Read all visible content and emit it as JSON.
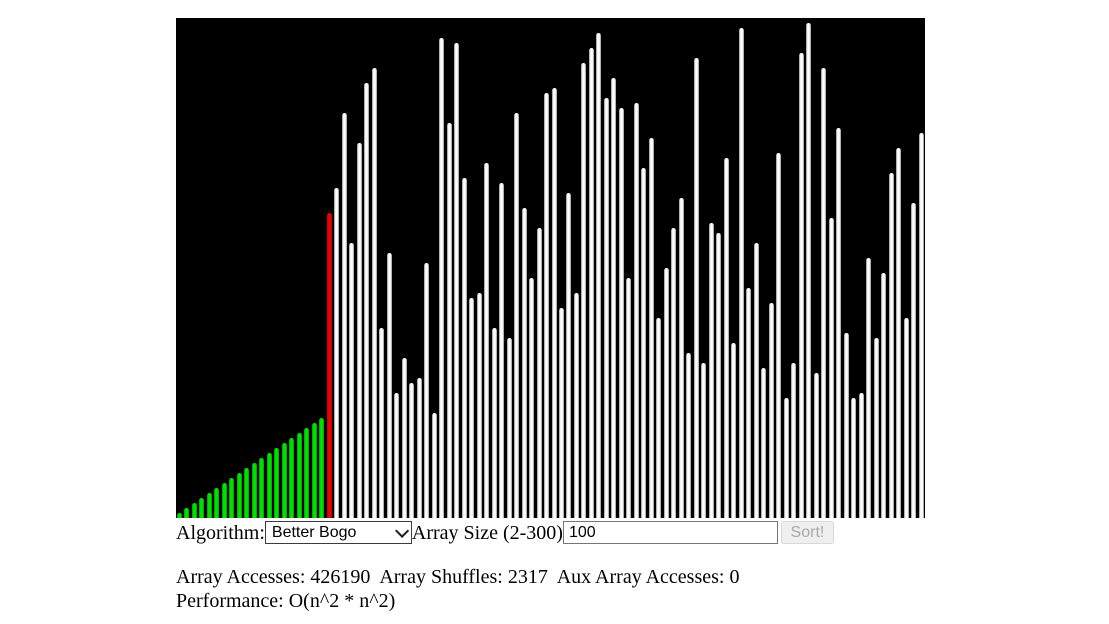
{
  "page": {
    "background": "#ffffff"
  },
  "chart_data": {
    "type": "bar",
    "title": "",
    "xlabel": "",
    "ylabel": "",
    "ylim": [
      0,
      100
    ],
    "grid": false,
    "canvas_background": "#000000",
    "bar_count": 100,
    "sorted_prefix_count": 20,
    "current_index": 20,
    "colors": {
      "sorted": "#00e400",
      "current": "#ee0000",
      "unsorted": "#ffffff"
    },
    "values": [
      1,
      2,
      3,
      4,
      5,
      6,
      7,
      8,
      9,
      10,
      11,
      12,
      13,
      14,
      15,
      16,
      17,
      18,
      19,
      20,
      61,
      66,
      81,
      55,
      75,
      87,
      90,
      38,
      53,
      25,
      32,
      27,
      28,
      51,
      21,
      96,
      79,
      95,
      68,
      44,
      45,
      71,
      38,
      67,
      36,
      81,
      62,
      48,
      58,
      85,
      86,
      42,
      65,
      45,
      91,
      94,
      97,
      84,
      88,
      82,
      48,
      83,
      70,
      76,
      40,
      50,
      58,
      64,
      33,
      92,
      31,
      59,
      57,
      72,
      35,
      98,
      46,
      55,
      30,
      43,
      73,
      24,
      31,
      93,
      99,
      29,
      90,
      60,
      78,
      37,
      24,
      25,
      52,
      36,
      49,
      69,
      74,
      40,
      63,
      77
    ]
  },
  "controls": {
    "algorithm_label": "Algorithm:",
    "algorithm_selected": "Better Bogo",
    "array_size_label": "Array Size (2-300)",
    "array_size_value": "100",
    "sort_button_label": "Sort!"
  },
  "stats": {
    "items": [
      {
        "label": "Array Accesses:",
        "value": "426190"
      },
      {
        "label": "Array Shuffles:",
        "value": "2317"
      },
      {
        "label": "Aux Array Accesses:",
        "value": "0"
      }
    ],
    "performance_label": "Performance:",
    "performance_value": "O(n^2 * n^2)"
  }
}
